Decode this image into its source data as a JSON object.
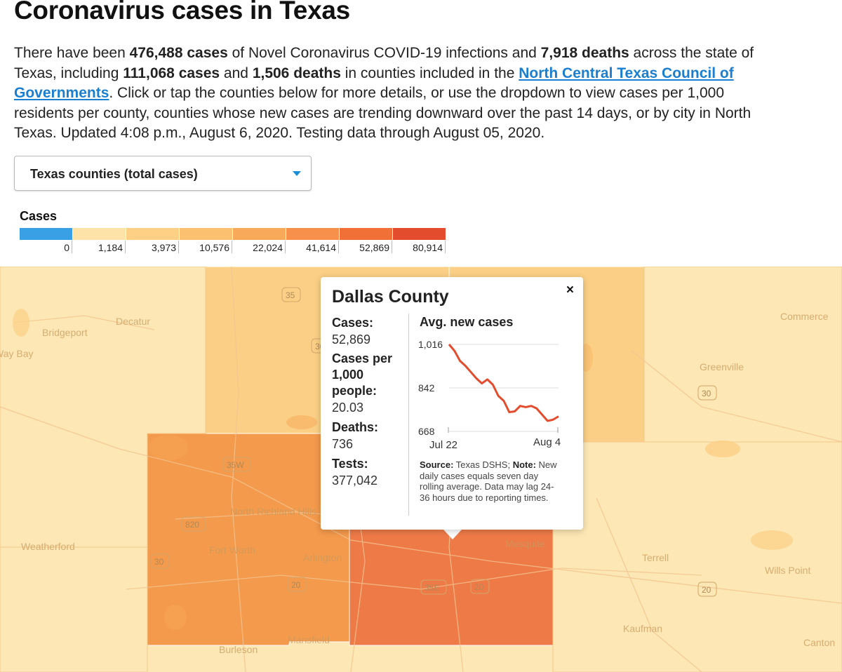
{
  "header": {
    "title": "Coronavirus cases in Texas"
  },
  "intro": {
    "l1a": "There have been ",
    "l1b": "476,488 cases",
    "l1c": " of Novel Coronavirus COVID-19 infections and ",
    "l1d": "7,918 deaths",
    "l1e": " across the state of",
    "l2a": "Texas, including ",
    "l2b": "111,068 cases",
    "l2c": " and ",
    "l2d": "1,506 deaths",
    "l2e": " in counties included in the ",
    "l2link": "North Central Texas Council of",
    "l3link": "Governments",
    "l3b": ". Click or tap the counties below for more details, or use the dropdown to view cases per 1,000",
    "l4": "residents per county, counties whose new cases are trending downward over the past 14 days, or by city in North",
    "l5": "Texas. Updated 4:08 p.m., August 6, 2020. Testing data through August 05, 2020."
  },
  "dropdown": {
    "selected": "Texas counties (total cases)"
  },
  "legend": {
    "title": "Cases",
    "colors": [
      "#3aa0e6",
      "#fde3a7",
      "#fdd085",
      "#fbc070",
      "#f9a95a",
      "#f6904a",
      "#f07038",
      "#e34d2d"
    ],
    "ticks": [
      "0",
      "1,184",
      "3,973",
      "10,576",
      "22,024",
      "41,614",
      "52,869",
      "80,914"
    ]
  },
  "map": {
    "colors": {
      "pale": "#fde7b4",
      "light": "#fbd086",
      "mid": "#f7a856",
      "tarrant": "#f49a4c",
      "dallas": "#ee7a47"
    },
    "cities": [
      "Bridgeport",
      "Decatur",
      "Way Bay",
      "Weatherford",
      "Fort Worth",
      "North Richland Hills",
      "Arlington",
      "Mansfield",
      "Burleson",
      "Mesquite",
      "Terrell",
      "Kaufman",
      "Wills Point",
      "Canton",
      "Greenville",
      "Commerce"
    ],
    "shields": [
      "35",
      "35W",
      "820",
      "30",
      "20",
      "35E",
      "20",
      "30",
      "20",
      "30"
    ]
  },
  "tooltip": {
    "county": "Dallas County",
    "close": "×",
    "cases_label": "Cases:",
    "cases_value": "52,869",
    "per_label": "Cases per 1,000 people:",
    "per_value": "20.03",
    "deaths_label": "Deaths:",
    "deaths_value": "736",
    "tests_label": "Tests:",
    "tests_value": "377,042",
    "chart_title": "Avg. new cases",
    "source_label": "Source:",
    "source_text": " Texas DSHS; ",
    "note_label": "Note:",
    "note_text": " New daily cases equals seven day rolling average. Data may lag 24-36 hours due to reporting times."
  },
  "chart_data": {
    "type": "line",
    "title": "Avg. new cases",
    "x_labels": [
      "Jul 22",
      "Aug 4"
    ],
    "y_ticks": [
      "1,016",
      "842",
      "668"
    ],
    "ylim": [
      668,
      1016
    ],
    "series": [
      {
        "values": [
          1016,
          990,
          950,
          930,
          905,
          880,
          860,
          876,
          855,
          810,
          790,
          745,
          748,
          770,
          765,
          770,
          760,
          735,
          710,
          715,
          728
        ]
      }
    ]
  }
}
